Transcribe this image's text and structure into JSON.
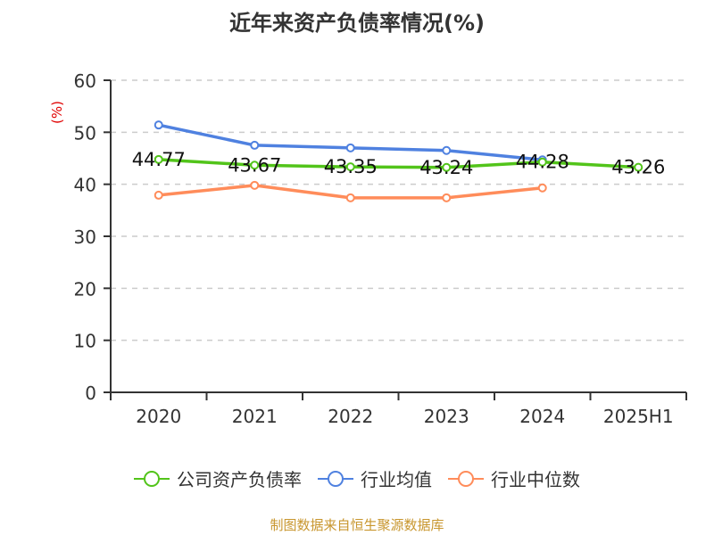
{
  "title": "近年来资产负债率情况(%)",
  "source": "制图数据来自恒生聚源数据库",
  "colors": {
    "company": "#52c41a",
    "industry_avg": "#4f81e0",
    "industry_median": "#ff8c5a",
    "axis": "#333333",
    "grid": "#cccccc",
    "ylabel": "#e00000"
  },
  "legend": [
    {
      "label": "公司资产负债率",
      "color": "#52c41a"
    },
    {
      "label": "行业均值",
      "color": "#4f81e0"
    },
    {
      "label": "行业中位数",
      "color": "#ff8c5a"
    }
  ],
  "chart_data": {
    "type": "line",
    "title": "近年来资产负债率情况(%)",
    "xlabel": "",
    "ylabel": "(%)",
    "ylim": [
      0,
      60
    ],
    "yticks": [
      0,
      10,
      20,
      30,
      40,
      50,
      60
    ],
    "grid": true,
    "legend_position": "bottom",
    "categories": [
      "2020",
      "2021",
      "2022",
      "2023",
      "2024",
      "2025H1"
    ],
    "series": [
      {
        "name": "公司资产负债率",
        "values": [
          44.77,
          43.67,
          43.35,
          43.24,
          44.28,
          43.26
        ],
        "labels": [
          "44.77",
          "43.67",
          "43.35",
          "43.24",
          "44.28",
          "43.26"
        ]
      },
      {
        "name": "行业均值",
        "values": [
          51.4,
          47.5,
          47.0,
          46.5,
          44.7,
          null
        ]
      },
      {
        "name": "行业中位数",
        "values": [
          37.9,
          39.8,
          37.4,
          37.4,
          39.3,
          null
        ]
      }
    ]
  }
}
